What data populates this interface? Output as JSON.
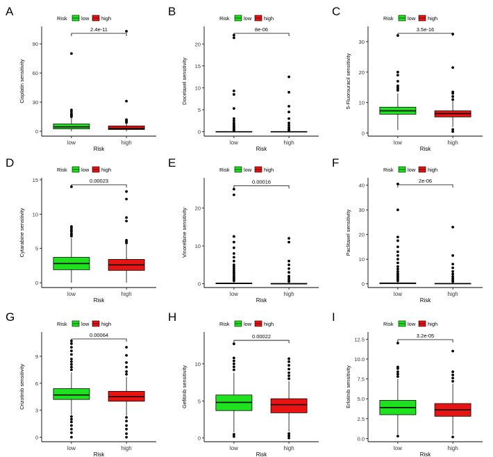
{
  "colors": {
    "low": "#1ee21e",
    "high": "#e81414",
    "axis": "#000000",
    "panel_bg": "#ffffff"
  },
  "chart_data": [
    {
      "letter": "A",
      "type": "box",
      "ylabel": "Cisplatin sensitivity",
      "xlabel": "Risk",
      "legend_title": "Risk",
      "legend_items": [
        "low",
        "high"
      ],
      "categories": [
        "low",
        "high"
      ],
      "ylim": [
        -5,
        108
      ],
      "yticks": [
        0,
        30,
        60,
        90
      ],
      "ytick_labels": [
        "0",
        "30",
        "60",
        "90"
      ],
      "pvalue": "2.4e-11",
      "boxes": [
        {
          "group": "low",
          "q1": 2.5,
          "median": 4.5,
          "q3": 7.5,
          "wlo": 0,
          "whi": 14,
          "outliers": [
            15,
            16,
            17,
            18,
            20,
            22,
            80
          ]
        },
        {
          "group": "high",
          "q1": 1.8,
          "median": 3.0,
          "q3": 5.5,
          "wlo": 0,
          "whi": 8,
          "outliers": [
            9,
            10,
            11,
            12,
            31,
            103
          ]
        }
      ]
    },
    {
      "letter": "B",
      "type": "box",
      "ylabel": "Docetaxel sensitivity",
      "xlabel": "Risk",
      "legend_title": "Risk",
      "legend_items": [
        "low",
        "high"
      ],
      "categories": [
        "low",
        "high"
      ],
      "ylim": [
        -1,
        24
      ],
      "yticks": [
        0,
        5,
        10,
        15,
        20
      ],
      "ytick_labels": [
        "0",
        "5",
        "10",
        "15",
        "20"
      ],
      "pvalue": "8e-06",
      "boxes": [
        {
          "group": "low",
          "q1": 0,
          "median": 0,
          "q3": 0.05,
          "wlo": 0,
          "whi": 0.1,
          "outliers": [
            0.3,
            0.5,
            0.8,
            1.0,
            1.3,
            1.6,
            2.0,
            2.5,
            3.0,
            5.3,
            8.5,
            9.3,
            21.4,
            22.0
          ]
        },
        {
          "group": "high",
          "q1": 0,
          "median": 0,
          "q3": 0.05,
          "wlo": 0,
          "whi": 0.1,
          "outliers": [
            0.3,
            0.6,
            1.0,
            1.5,
            2.0,
            3.0,
            4.5,
            5.8,
            9.0,
            12.5
          ]
        }
      ]
    },
    {
      "letter": "C",
      "type": "box",
      "ylabel": "5-Fluorouracil sensitivity",
      "xlabel": "Risk",
      "legend_title": "Risk",
      "legend_items": [
        "low",
        "high"
      ],
      "categories": [
        "low",
        "high"
      ],
      "ylim": [
        -1,
        35
      ],
      "yticks": [
        0,
        10,
        20,
        30
      ],
      "ytick_labels": [
        "0",
        "10",
        "20",
        "30"
      ],
      "pvalue": "3.5e-16",
      "boxes": [
        {
          "group": "low",
          "q1": 6.2,
          "median": 7.3,
          "q3": 8.5,
          "wlo": 1,
          "whi": 13,
          "outliers": [
            14,
            14.5,
            15,
            15.5,
            17,
            19,
            20,
            32
          ]
        },
        {
          "group": "high",
          "q1": 5.3,
          "median": 6.4,
          "q3": 7.3,
          "wlo": 2,
          "whi": 10.5,
          "outliers": [
            0.5,
            1.2,
            11,
            12,
            13,
            13.5,
            21.5,
            32.5
          ]
        }
      ]
    },
    {
      "letter": "D",
      "type": "box",
      "ylabel": "Cytarabine sensitivity",
      "xlabel": "Risk",
      "legend_title": "Risk",
      "legend_items": [
        "low",
        "high"
      ],
      "categories": [
        "low",
        "high"
      ],
      "ylim": [
        -0.7,
        15.3
      ],
      "yticks": [
        0,
        5,
        10,
        15
      ],
      "ytick_labels": [
        "0",
        "5",
        "10",
        "15"
      ],
      "pvalue": "0.00023",
      "boxes": [
        {
          "group": "low",
          "q1": 1.9,
          "median": 2.8,
          "q3": 3.7,
          "wlo": 0,
          "whi": 6.5,
          "outliers": [
            6.8,
            7.0,
            7.2,
            7.5,
            7.7,
            8.0,
            8.2,
            14.0
          ]
        },
        {
          "group": "high",
          "q1": 1.8,
          "median": 2.6,
          "q3": 3.4,
          "wlo": 0,
          "whi": 5.6,
          "outliers": [
            5.8,
            6.0,
            6.2,
            9.0,
            9.5,
            12.2,
            13.3
          ]
        }
      ]
    },
    {
      "letter": "E",
      "type": "box",
      "ylabel": "Vinorelbine sensitivity",
      "xlabel": "Risk",
      "legend_title": "Risk",
      "legend_items": [
        "low",
        "high"
      ],
      "categories": [
        "low",
        "high"
      ],
      "ylim": [
        -1,
        28
      ],
      "yticks": [
        0,
        10,
        20
      ],
      "ytick_labels": [
        "0",
        "10",
        "20"
      ],
      "pvalue": "0.00016",
      "boxes": [
        {
          "group": "low",
          "q1": 0,
          "median": 0.1,
          "q3": 0.2,
          "wlo": 0,
          "whi": 0.5,
          "outliers": [
            0.8,
            1.2,
            1.6,
            2.0,
            2.5,
            3.0,
            3.5,
            4.0,
            4.5,
            5.0,
            6.0,
            7.0,
            8.0,
            9.5,
            11.0,
            12.5,
            23.5,
            25.0
          ]
        },
        {
          "group": "high",
          "q1": 0,
          "median": 0,
          "q3": 0.1,
          "wlo": 0,
          "whi": 0.3,
          "outliers": [
            0.6,
            1.0,
            1.5,
            2.0,
            3.0,
            4.0,
            5.0,
            6.0,
            11.0,
            12.0
          ]
        }
      ]
    },
    {
      "letter": "F",
      "type": "box",
      "ylabel": "Paclitaxel sensitivity",
      "xlabel": "Risk",
      "legend_title": "Risk",
      "legend_items": [
        "low",
        "high"
      ],
      "categories": [
        "low",
        "high"
      ],
      "ylim": [
        -1.5,
        43
      ],
      "yticks": [
        0,
        10,
        20,
        30,
        40
      ],
      "ytick_labels": [
        "0",
        "10",
        "20",
        "30",
        "40"
      ],
      "pvalue": "2e-06",
      "boxes": [
        {
          "group": "low",
          "q1": 0.1,
          "median": 0.2,
          "q3": 0.4,
          "wlo": 0,
          "whi": 0.8,
          "outliers": [
            1.2,
            1.8,
            2.4,
            3.0,
            3.6,
            4.2,
            5.0,
            6.0,
            7.0,
            8.5,
            10.0,
            11.5,
            13.0,
            15.0,
            17.5,
            19.0,
            30.0,
            40.5
          ]
        },
        {
          "group": "high",
          "q1": 0,
          "median": 0.1,
          "q3": 0.2,
          "wlo": 0,
          "whi": 0.5,
          "outliers": [
            0.9,
            1.5,
            2.2,
            3.0,
            4.0,
            5.0,
            6.5,
            8.0,
            11.5,
            23.0
          ]
        }
      ]
    },
    {
      "letter": "G",
      "type": "box",
      "ylabel": "Crizotinib sensitivity",
      "xlabel": "Risk",
      "legend_title": "Risk",
      "legend_items": [
        "low",
        "high"
      ],
      "categories": [
        "low",
        "high"
      ],
      "ylim": [
        -0.5,
        11.7
      ],
      "yticks": [
        0,
        3,
        6,
        9
      ],
      "ytick_labels": [
        "0",
        "3",
        "6",
        "9"
      ],
      "pvalue": "0.00064",
      "boxes": [
        {
          "group": "low",
          "q1": 4.2,
          "median": 4.7,
          "q3": 5.4,
          "wlo": 2.5,
          "whi": 7.2,
          "outliers": [
            0,
            0.5,
            0.9,
            1.3,
            1.7,
            2.0,
            2.3,
            7.5,
            7.8,
            8.1,
            8.4,
            8.7,
            9.2,
            9.6,
            10.0,
            10.4,
            10.7
          ]
        },
        {
          "group": "high",
          "q1": 4.0,
          "median": 4.5,
          "q3": 5.1,
          "wlo": 2.4,
          "whi": 6.7,
          "outliers": [
            0,
            0.4,
            0.9,
            1.3,
            1.8,
            2.2,
            7.0,
            7.3,
            7.8,
            8.3,
            9.1,
            10.0
          ]
        }
      ]
    },
    {
      "letter": "H",
      "type": "box",
      "ylabel": "Gefitinib sensitivity",
      "xlabel": "Risk",
      "legend_title": "Risk",
      "legend_items": [
        "low",
        "high"
      ],
      "categories": [
        "low",
        "high"
      ],
      "ylim": [
        -0.5,
        14.3
      ],
      "yticks": [
        0,
        5,
        10
      ],
      "ytick_labels": [
        "0",
        "5",
        "10"
      ],
      "pvalue": "0.00022",
      "boxes": [
        {
          "group": "low",
          "q1": 3.7,
          "median": 4.8,
          "q3": 5.8,
          "wlo": 0.8,
          "whi": 8.8,
          "outliers": [
            0.2,
            0.5,
            9.2,
            9.6,
            10.0,
            10.4,
            10.8,
            12.7
          ]
        },
        {
          "group": "high",
          "q1": 3.4,
          "median": 4.5,
          "q3": 5.3,
          "wlo": 0.9,
          "whi": 7.7,
          "outliers": [
            0,
            0.3,
            0.6,
            8.0,
            8.4,
            8.8,
            9.3,
            9.8,
            10.3,
            10.7
          ]
        }
      ]
    },
    {
      "letter": "I",
      "type": "box",
      "ylabel": "Erlotinib sensitivity",
      "xlabel": "Risk",
      "legend_title": "Risk",
      "legend_items": [
        "low",
        "high"
      ],
      "categories": [
        "low",
        "high"
      ],
      "ylim": [
        -0.4,
        13.4
      ],
      "yticks": [
        0,
        2.5,
        5,
        7.5,
        10,
        12.5
      ],
      "ytick_labels": [
        "0.0",
        "2.5",
        "5.0",
        "7.5",
        "10.0",
        "12.5"
      ],
      "pvalue": "3.2e-05",
      "boxes": [
        {
          "group": "low",
          "q1": 3.0,
          "median": 3.9,
          "q3": 4.8,
          "wlo": 0.5,
          "whi": 7.5,
          "outliers": [
            0.3,
            7.8,
            8.1,
            8.4,
            8.8,
            9.0,
            12.0
          ]
        },
        {
          "group": "high",
          "q1": 2.8,
          "median": 3.6,
          "q3": 4.4,
          "wlo": 0.5,
          "whi": 6.9,
          "outliers": [
            0.2,
            7.2,
            7.6,
            8.0,
            8.4,
            11.0
          ]
        }
      ]
    }
  ]
}
